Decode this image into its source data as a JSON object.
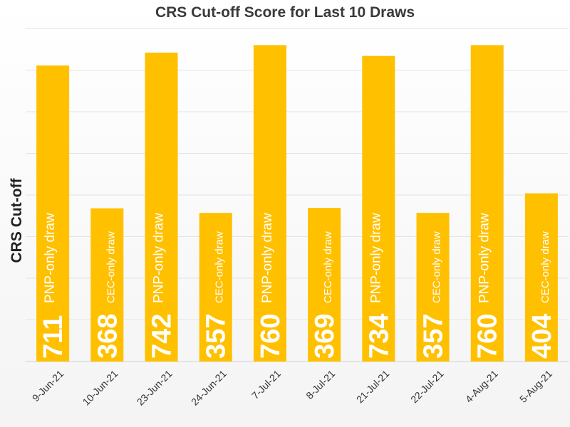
{
  "chart_data": {
    "type": "bar",
    "title": "CRS Cut-off Score for Last 10 Draws",
    "xlabel": "",
    "ylabel": "CRS Cut-off",
    "ylim": [
      0,
      800
    ],
    "grid": true,
    "categories": [
      "9-Jun-21",
      "10-Jun-21",
      "23-Jun-21",
      "24-Jun-21",
      "7-Jul-21",
      "8-Jul-21",
      "21-Jul-21",
      "22-Jul-21",
      "4-Aug-21",
      "5-Aug-21"
    ],
    "values": [
      711,
      368,
      742,
      357,
      760,
      369,
      734,
      357,
      760,
      404
    ],
    "value_labels": [
      "711",
      "368",
      "742",
      "357",
      "760",
      "369",
      "734",
      "357",
      "760",
      "404"
    ],
    "annotations": [
      "PNP-only draw",
      "CEC-only draw",
      "PNP-only draw",
      "CEC-only draw",
      "PNP-only draw",
      "CEC-only draw",
      "PNP-only draw",
      "CEC-only draw",
      "PNP-only draw",
      "CEC-only draw"
    ],
    "colors": {
      "bar": "#FFC000",
      "grid": "#e2e2e2",
      "value_text": "#ffffff",
      "tick_text": "#333333"
    }
  }
}
